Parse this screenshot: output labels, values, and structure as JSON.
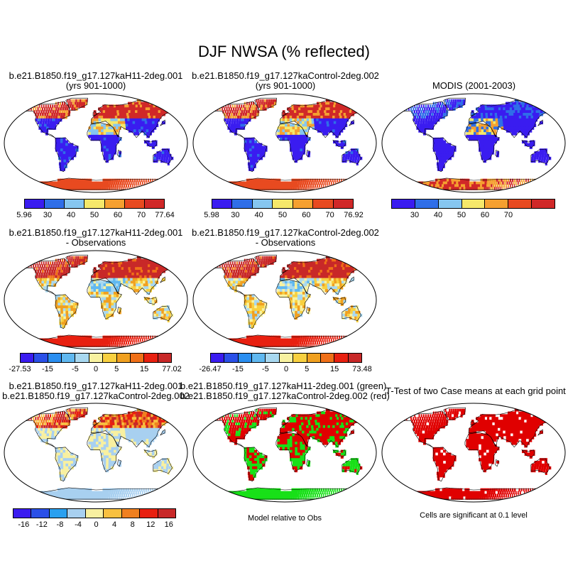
{
  "page": {
    "title": "DJF NWSA (% reflected)"
  },
  "panels": {
    "case1_title": "b.e21.B1850.f19_g17.127kaH11-2deg.001",
    "case1_years": "(yrs 901-1000)",
    "case2_title": "b.e21.B1850.f19_g17.127kaControl-2deg.002",
    "case2_years": "(yrs 901-1000)",
    "obs_title": "MODIS (2001-2003)",
    "diff1_title": "b.e21.B1850.f19_g17.127kaH11-2deg.001",
    "diff1_sub": "- Observations",
    "diff2_title": "b.e21.B1850.f19_g17.127kaControl-2deg.002",
    "diff2_sub": "- Observations",
    "rel_line1": "b.e21.B1850.f19_g17.127kaH11-2deg.001",
    "rel_line2": "b.e21.B1850.f19_g17.127kaControl-2deg.002",
    "cmp_line1": "b.e21.B1850.f19_g17.127kaH11-2deg.001 (green)",
    "cmp_line2": "b.e21.B1850.f19_g17.127kaControl-2deg.002 (red)",
    "ttest_title": "T-Test of two Case means at each grid point",
    "model_rel_note": "Model relative to Obs",
    "sig_note": "Cells are significant at 0.1 level"
  },
  "colors": {
    "abs_scale": [
      "#3a1cf0",
      "#2f6ee8",
      "#86c6f0",
      "#f5e86a",
      "#f5a030",
      "#e84a20",
      "#d02828"
    ],
    "diff_scale": [
      "#3a1cf0",
      "#2a50e8",
      "#2a8ef0",
      "#60b8f0",
      "#a8d8f0",
      "#f8f2a0",
      "#f8d040",
      "#f0a020",
      "#f07018",
      "#e82010",
      "#c82828"
    ],
    "rel_scale": [
      "#3a1cf0",
      "#2a50e8",
      "#2aa0f0",
      "#a8d0f0",
      "#f8f0a0",
      "#f8c040",
      "#f08020",
      "#e82010",
      "#c82828"
    ],
    "green": "#18e018",
    "red": "#e00000",
    "ocean": "#ffffff"
  },
  "chart_data": [
    {
      "type": "heatmap",
      "title": "b.e21.B1850.f19_g17.127kaH11-2deg.001 (yrs 901-1000)",
      "colorbar_ticks": [
        "5.96",
        "30",
        "40",
        "50",
        "60",
        "70",
        "77.64"
      ],
      "levels": [
        5.96,
        30,
        40,
        50,
        60,
        70,
        77.64
      ]
    },
    {
      "type": "heatmap",
      "title": "b.e21.B1850.f19_g17.127kaControl-2deg.002 (yrs 901-1000)",
      "colorbar_ticks": [
        "5.98",
        "30",
        "40",
        "50",
        "60",
        "70",
        "76.92"
      ],
      "levels": [
        5.98,
        30,
        40,
        50,
        60,
        70,
        76.92
      ]
    },
    {
      "type": "heatmap",
      "title": "MODIS (2001-2003)",
      "colorbar_ticks": [
        "30",
        "40",
        "50",
        "60",
        "70"
      ],
      "levels": [
        30,
        40,
        50,
        60,
        70
      ]
    },
    {
      "type": "heatmap",
      "title": "b.e21.B1850.f19_g17.127kaH11-2deg.001 - Observations",
      "colorbar_ticks": [
        "-27.53",
        "-15",
        "-5",
        "0",
        "5",
        "15",
        "77.02"
      ],
      "levels": [
        -27.53,
        -15,
        -5,
        0,
        5,
        15,
        77.02
      ]
    },
    {
      "type": "heatmap",
      "title": "b.e21.B1850.f19_g17.127kaControl-2deg.002 - Observations",
      "colorbar_ticks": [
        "-26.47",
        "-15",
        "-5",
        "0",
        "5",
        "15",
        "73.48"
      ],
      "levels": [
        -26.47,
        -15,
        -5,
        0,
        5,
        15,
        73.48
      ]
    },
    {
      "type": "heatmap",
      "title": "b.e21.B1850.f19_g17.127kaH11-2deg.001 b.e21.B1850.f19_g17.127kaControl-2deg.002",
      "colorbar_ticks": [
        "-16",
        "-12",
        "-8",
        "-4",
        "0",
        "4",
        "8",
        "12",
        "16"
      ],
      "levels": [
        -16,
        -12,
        -8,
        -4,
        0,
        4,
        8,
        12,
        16
      ]
    },
    {
      "type": "heatmap",
      "title": "b.e21.B1850.f19_g17.127kaH11-2deg.001 (green) b.e21.B1850.f19_g17.127kaControl-2deg.002 (red)",
      "note": "Model relative to Obs"
    },
    {
      "type": "heatmap",
      "title": "T-Test of two Case means at each grid point",
      "note": "Cells are significant at 0.1 level"
    }
  ]
}
